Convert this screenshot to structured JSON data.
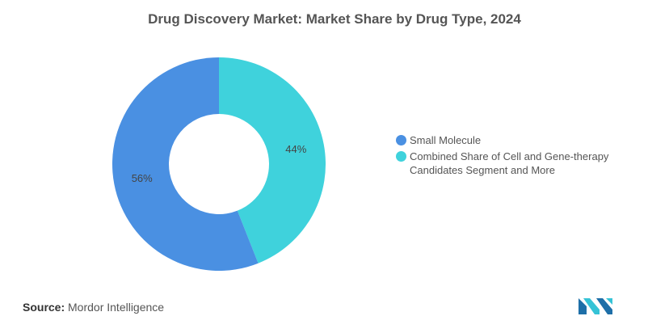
{
  "chart_data": {
    "type": "pie",
    "title": "Drug Discovery Market: Market Share by Drug Type, 2024",
    "donut": true,
    "legend_position": "right",
    "slices": [
      {
        "label": "Small Molecule",
        "value": 56,
        "data_label": "56%",
        "color": "#4A90E2"
      },
      {
        "label": "Combined Share of Cell and Gene-therapy Candidates Segment and More",
        "value": 44,
        "data_label": "44%",
        "color": "#3FD2DC"
      }
    ]
  },
  "source": {
    "label": "Source:",
    "text": "Mordor Intelligence"
  },
  "logo": {
    "icon": "mordor-intelligence-logo",
    "colors": [
      "#1E6FA8",
      "#35C3D6"
    ]
  }
}
